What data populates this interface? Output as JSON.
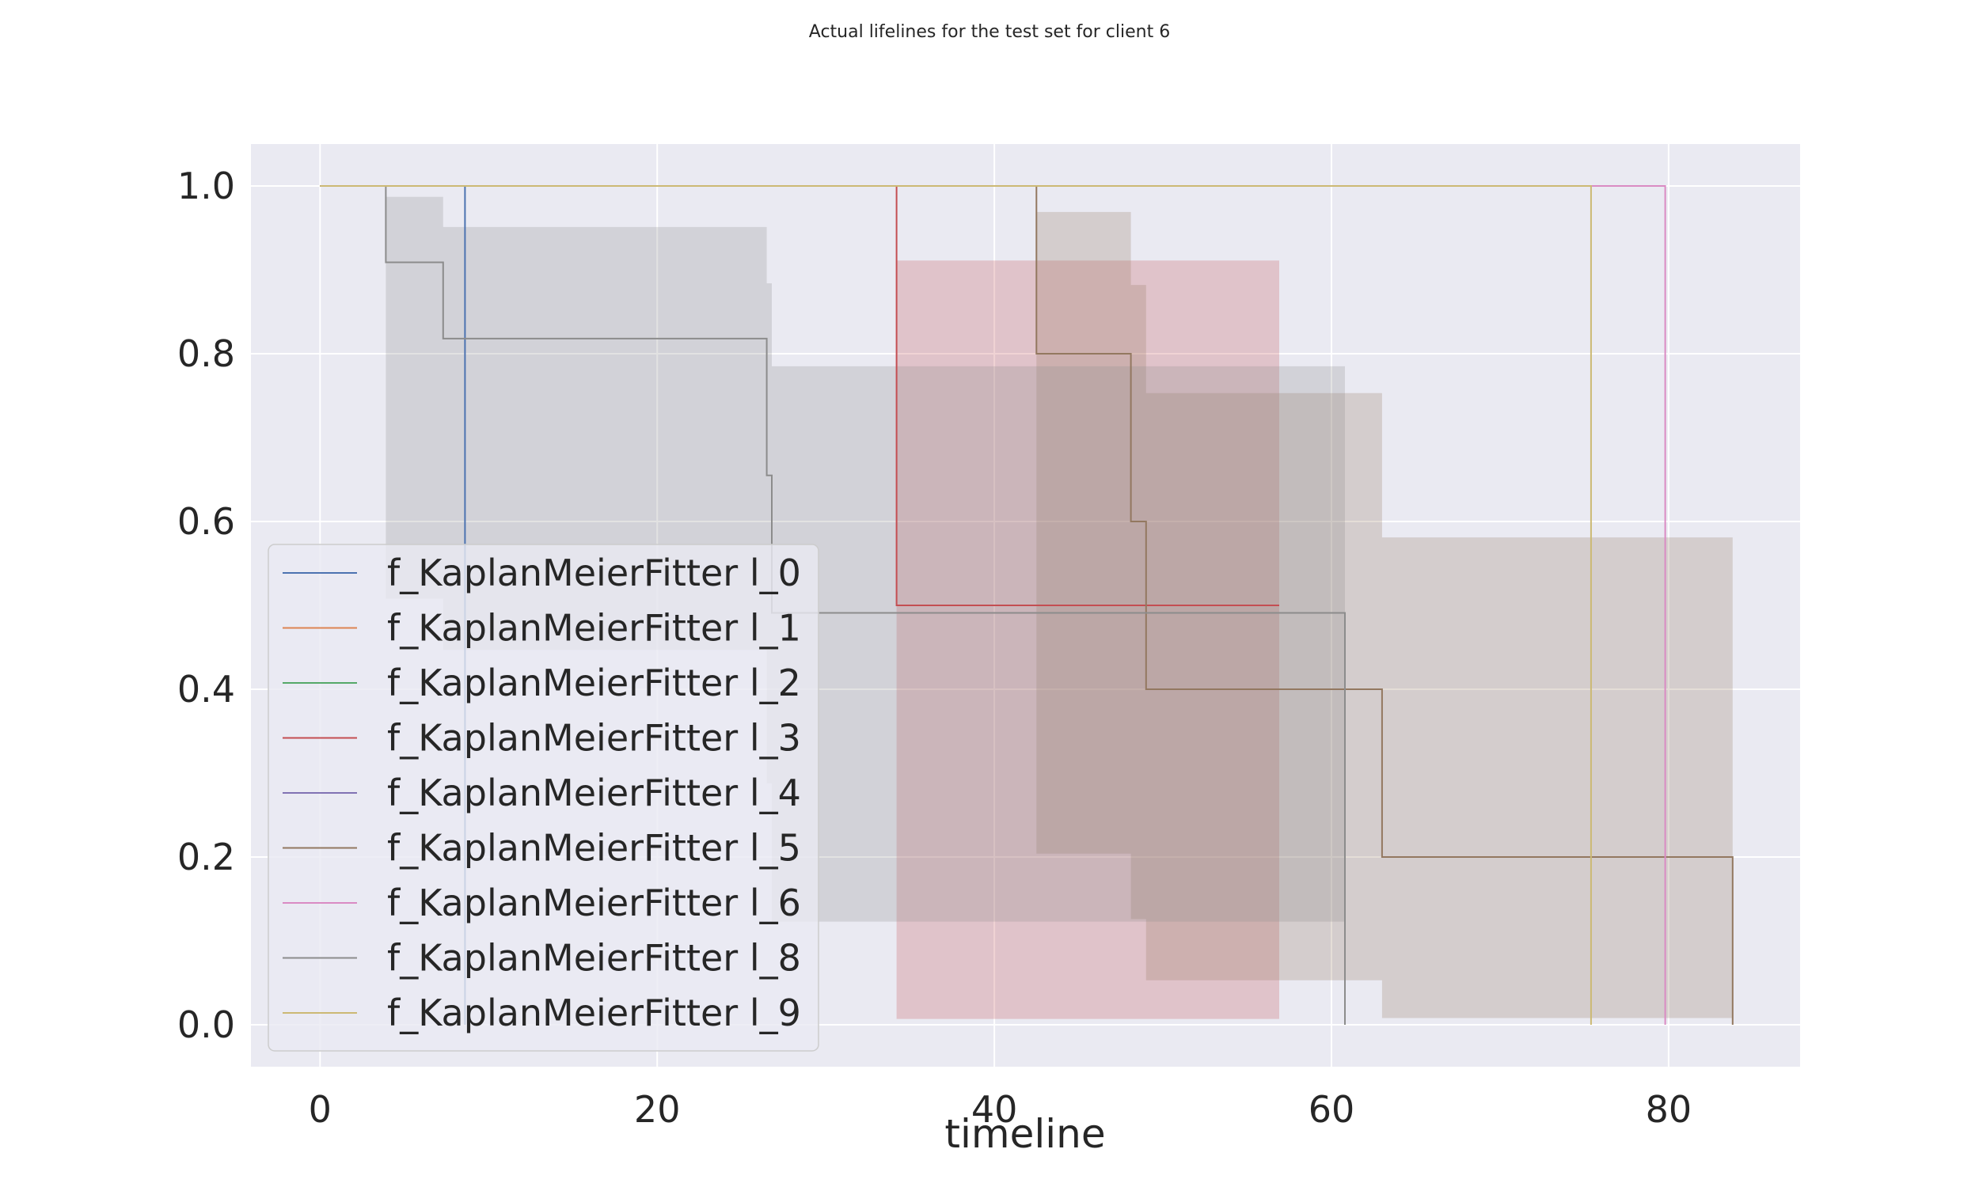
{
  "chart_data": {
    "type": "line",
    "title": "Actual lifelines for the test set for client 6",
    "xlabel": "timeline",
    "ylabel": "",
    "xlim": [
      -4.1,
      87.8
    ],
    "ylim": [
      -0.05,
      1.05
    ],
    "xticks": [
      0,
      20,
      40,
      60,
      80
    ],
    "yticks": [
      0.0,
      0.2,
      0.4,
      0.6,
      0.8,
      1.0
    ],
    "xtick_labels": [
      "0",
      "20",
      "40",
      "60",
      "80"
    ],
    "ytick_labels": [
      "0.0",
      "0.2",
      "0.4",
      "0.6",
      "0.8",
      "1.0"
    ],
    "grid": true,
    "legend_position": "lower-left",
    "series": [
      {
        "name": "f_KaplanMeierFitter l_0",
        "color": "#4c72b0",
        "steps": [
          [
            0,
            1.0
          ],
          [
            8.6,
            0.0
          ]
        ]
      },
      {
        "name": "f_KaplanMeierFitter l_1",
        "color": "#dd8452",
        "steps": [
          [
            0,
            1.0
          ],
          [
            79.8,
            1.0
          ]
        ]
      },
      {
        "name": "f_KaplanMeierFitter l_2",
        "color": "#55a868",
        "steps": [
          [
            0,
            1.0
          ],
          [
            79.8,
            1.0
          ]
        ]
      },
      {
        "name": "f_KaplanMeierFitter l_3",
        "color": "#c44e52",
        "steps": [
          [
            0,
            1.0
          ],
          [
            34.2,
            0.5
          ],
          [
            56.9,
            0.5
          ]
        ],
        "ci": [
          [
            34.2,
            0.007,
            0.911
          ],
          [
            56.9,
            0.007,
            0.911
          ]
        ]
      },
      {
        "name": "f_KaplanMeierFitter l_4",
        "color": "#8172b3",
        "steps": [
          [
            0,
            1.0
          ],
          [
            79.8,
            1.0
          ]
        ]
      },
      {
        "name": "f_KaplanMeierFitter l_5",
        "color": "#937860",
        "steps": [
          [
            0,
            1.0
          ],
          [
            42.5,
            0.8
          ],
          [
            48.1,
            0.6
          ],
          [
            49.0,
            0.4
          ],
          [
            63.0,
            0.2
          ],
          [
            83.8,
            0.0
          ]
        ],
        "ci": [
          [
            42.5,
            0.204,
            0.969
          ],
          [
            48.1,
            0.126,
            0.882
          ],
          [
            49.0,
            0.053,
            0.753
          ],
          [
            63.0,
            0.008,
            0.581
          ],
          [
            83.8,
            0.008,
            0.581
          ]
        ]
      },
      {
        "name": "f_KaplanMeierFitter l_6",
        "color": "#da8bc3",
        "steps": [
          [
            0,
            1.0
          ],
          [
            79.8,
            0.0
          ]
        ]
      },
      {
        "name": "f_KaplanMeierFitter l_8",
        "color": "#8c8c8c",
        "steps": [
          [
            0,
            1.0
          ],
          [
            3.9,
            0.909
          ],
          [
            7.3,
            0.818
          ],
          [
            26.5,
            0.655
          ],
          [
            26.8,
            0.491
          ],
          [
            60.8,
            0.0
          ]
        ],
        "ci": [
          [
            3.9,
            0.508,
            0.987
          ],
          [
            7.3,
            0.447,
            0.951
          ],
          [
            26.5,
            0.288,
            0.884
          ],
          [
            26.8,
            0.123,
            0.785
          ],
          [
            60.8,
            0.123,
            0.785
          ]
        ]
      },
      {
        "name": "f_KaplanMeierFitter l_9",
        "color": "#ccb974",
        "steps": [
          [
            0,
            1.0
          ],
          [
            75.4,
            0.0
          ]
        ]
      }
    ]
  }
}
